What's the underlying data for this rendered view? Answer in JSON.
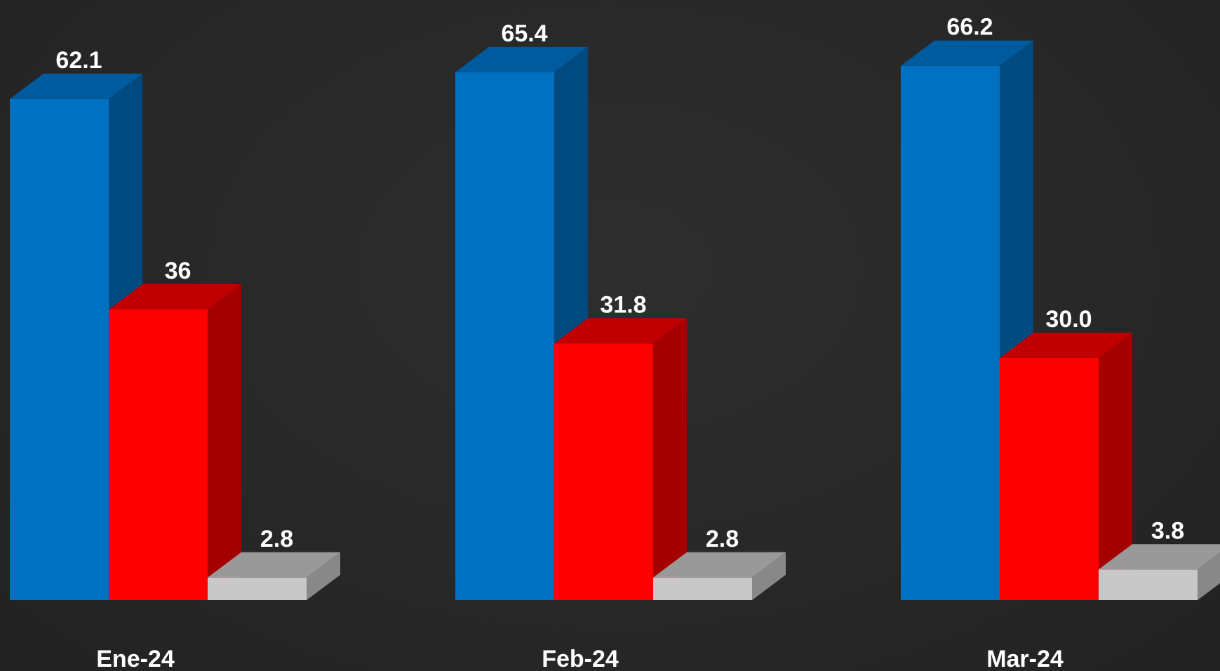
{
  "chart_data": {
    "type": "bar",
    "style": "3d-clustered-column",
    "categories": [
      "Ene-24",
      "Feb-24",
      "Mar-24"
    ],
    "series": [
      {
        "values": [
          62.1,
          65.4,
          66.2
        ],
        "labels": [
          "62.1",
          "65.4",
          "66.2"
        ],
        "color": "#0070C0",
        "side_color": "#004A80",
        "top_color": "#005A9E"
      },
      {
        "values": [
          36,
          31.8,
          30.0
        ],
        "labels": [
          "36",
          "31.8",
          "30.0"
        ],
        "color": "#FF0000",
        "side_color": "#A50000",
        "top_color": "#C00000"
      },
      {
        "values": [
          2.8,
          2.8,
          3.8
        ],
        "labels": [
          "2.8",
          "2.8",
          "3.8"
        ],
        "color": "#C8C8C8",
        "side_color": "#888888",
        "top_color": "#999999"
      }
    ],
    "ylim": [
      0,
      70
    ],
    "grid": false,
    "legend": "none",
    "background": "#2a2a2a",
    "label_color": "#ffffff"
  }
}
